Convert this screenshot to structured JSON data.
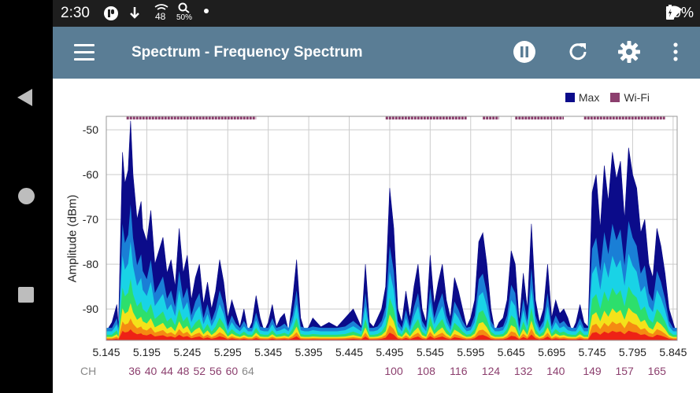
{
  "status_bar": {
    "time": "2:30",
    "icons": [
      "privacy-icon",
      "download-icon",
      "wifi-48-icon",
      "search-50-icon",
      "dot-icon"
    ],
    "wifi_badge": "48",
    "search_badge": "50%",
    "battery": "99%"
  },
  "app_bar": {
    "title": "Spectrum - Frequency Spectrum",
    "actions": [
      "pause-icon",
      "refresh-icon",
      "settings-icon",
      "more-icon"
    ]
  },
  "colors": {
    "app_bar": "#5a7d95",
    "max": "#0b0b8a",
    "wifi": "#8c3f6e",
    "channel_text": "#8c3f6e",
    "channel_dim": "#888888"
  },
  "chart_data": {
    "type": "area",
    "legend": [
      "Max",
      "Wi-Fi"
    ],
    "legend_position": "top-right",
    "ylabel": "Amplitude (dBm)",
    "xlabel": "",
    "ylim": [
      -97,
      -47
    ],
    "xlim": [
      5.145,
      5.85
    ],
    "y_ticks": [
      "-50",
      "-60",
      "-70",
      "-80",
      "-90"
    ],
    "y_tick_values": [
      -50,
      -60,
      -70,
      -80,
      -90
    ],
    "x_ticks": [
      "5.145",
      "5.195",
      "5.245",
      "5.295",
      "5.345",
      "5.395",
      "5.445",
      "5.495",
      "5.545",
      "5.595",
      "5.645",
      "5.695",
      "5.745",
      "5.795",
      "5.845"
    ],
    "x_tick_values": [
      5.145,
      5.195,
      5.245,
      5.295,
      5.345,
      5.395,
      5.445,
      5.495,
      5.545,
      5.595,
      5.645,
      5.695,
      5.745,
      5.795,
      5.845
    ],
    "grid": true,
    "max_series": {
      "name": "Max",
      "x": [
        5.145,
        5.152,
        5.158,
        5.16,
        5.165,
        5.168,
        5.172,
        5.175,
        5.178,
        5.183,
        5.188,
        5.19,
        5.195,
        5.2,
        5.205,
        5.21,
        5.215,
        5.22,
        5.225,
        5.23,
        5.235,
        5.24,
        5.245,
        5.25,
        5.255,
        5.26,
        5.265,
        5.27,
        5.275,
        5.28,
        5.285,
        5.29,
        5.295,
        5.3,
        5.305,
        5.31,
        5.315,
        5.32,
        5.325,
        5.33,
        5.335,
        5.34,
        5.345,
        5.35,
        5.355,
        5.36,
        5.365,
        5.37,
        5.375,
        5.38,
        5.385,
        5.39,
        5.395,
        5.4,
        5.41,
        5.42,
        5.43,
        5.44,
        5.45,
        5.46,
        5.465,
        5.47,
        5.475,
        5.48,
        5.485,
        5.49,
        5.495,
        5.5,
        5.505,
        5.51,
        5.515,
        5.52,
        5.525,
        5.53,
        5.535,
        5.54,
        5.545,
        5.55,
        5.555,
        5.56,
        5.565,
        5.57,
        5.575,
        5.58,
        5.585,
        5.59,
        5.595,
        5.6,
        5.605,
        5.61,
        5.615,
        5.62,
        5.625,
        5.63,
        5.635,
        5.64,
        5.645,
        5.65,
        5.655,
        5.66,
        5.665,
        5.67,
        5.675,
        5.68,
        5.685,
        5.69,
        5.695,
        5.7,
        5.705,
        5.71,
        5.715,
        5.72,
        5.725,
        5.73,
        5.735,
        5.74,
        5.745,
        5.75,
        5.755,
        5.76,
        5.765,
        5.77,
        5.775,
        5.78,
        5.785,
        5.79,
        5.795,
        5.8,
        5.805,
        5.81,
        5.815,
        5.82,
        5.825,
        5.83,
        5.835,
        5.84,
        5.845,
        5.85
      ],
      "y": [
        -95,
        -93,
        -89,
        -94,
        -55,
        -62,
        -59,
        -48,
        -60,
        -70,
        -66,
        -72,
        -75,
        -68,
        -80,
        -77,
        -74,
        -82,
        -79,
        -85,
        -72,
        -82,
        -78,
        -88,
        -83,
        -80,
        -89,
        -84,
        -90,
        -86,
        -79,
        -84,
        -92,
        -88,
        -91,
        -94,
        -90,
        -95,
        -93,
        -87,
        -92,
        -95,
        -93,
        -89,
        -94,
        -92,
        -91,
        -95,
        -88,
        -79,
        -92,
        -95,
        -94,
        -92,
        -94,
        -93,
        -94,
        -92,
        -90,
        -94,
        -80,
        -93,
        -94,
        -92,
        -90,
        -85,
        -63,
        -72,
        -90,
        -93,
        -86,
        -92,
        -85,
        -80,
        -90,
        -93,
        -78,
        -89,
        -84,
        -80,
        -88,
        -92,
        -83,
        -86,
        -90,
        -94,
        -92,
        -88,
        -75,
        -73,
        -80,
        -90,
        -95,
        -93,
        -92,
        -88,
        -77,
        -80,
        -93,
        -82,
        -90,
        -71,
        -88,
        -93,
        -90,
        -80,
        -92,
        -88,
        -91,
        -90,
        -92,
        -95,
        -93,
        -89,
        -93,
        -94,
        -64,
        -60,
        -72,
        -58,
        -66,
        -55,
        -61,
        -57,
        -70,
        -54,
        -60,
        -63,
        -73,
        -70,
        -80,
        -83,
        -72,
        -76,
        -82,
        -90,
        -93,
        -96
      ]
    },
    "wifi_bands": [
      {
        "start": 5.17,
        "end": 5.33
      },
      {
        "start": 5.49,
        "end": 5.59
      },
      {
        "start": 5.61,
        "end": 5.63
      },
      {
        "start": 5.65,
        "end": 5.71
      },
      {
        "start": 5.735,
        "end": 5.835
      }
    ],
    "channels": {
      "label": "CH",
      "items": [
        {
          "ch": "36",
          "f": 5.18
        },
        {
          "ch": "40",
          "f": 5.2
        },
        {
          "ch": "44",
          "f": 5.22
        },
        {
          "ch": "48",
          "f": 5.24
        },
        {
          "ch": "52",
          "f": 5.26
        },
        {
          "ch": "56",
          "f": 5.28
        },
        {
          "ch": "60",
          "f": 5.3
        },
        {
          "ch": "64",
          "f": 5.32
        },
        {
          "ch": "100",
          "f": 5.5
        },
        {
          "ch": "108",
          "f": 5.54
        },
        {
          "ch": "116",
          "f": 5.58
        },
        {
          "ch": "124",
          "f": 5.62
        },
        {
          "ch": "132",
          "f": 5.66
        },
        {
          "ch": "140",
          "f": 5.7
        },
        {
          "ch": "149",
          "f": 5.745
        },
        {
          "ch": "157",
          "f": 5.785
        },
        {
          "ch": "165",
          "f": 5.825
        }
      ]
    }
  }
}
